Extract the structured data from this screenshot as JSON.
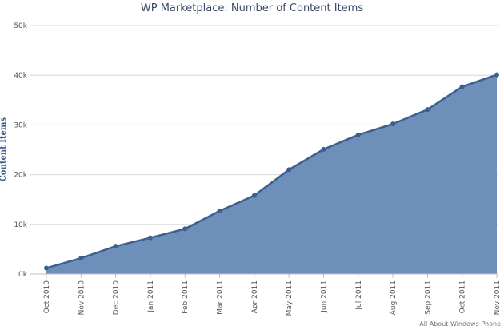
{
  "chart_data": {
    "type": "area",
    "title": "WP Marketplace: Number of Content Items",
    "ylabel": "Content Items",
    "xlabel": "",
    "credit": "All About Windows Phone",
    "categories": [
      "Oct 2010",
      "Nov 2010",
      "Dec 2010",
      "Jan 2011",
      "Feb 2011",
      "Mar 2011",
      "Apr 2011",
      "May 2011",
      "Jun 2011",
      "Jul 2011",
      "Aug 2011",
      "Sep 2011",
      "Oct 2011",
      "Nov 2011"
    ],
    "values": [
      1200,
      3200,
      5600,
      7300,
      9100,
      12700,
      15800,
      21000,
      25100,
      28000,
      30200,
      33100,
      37700,
      40100
    ],
    "ylim": [
      0,
      50000
    ],
    "yticks": [
      0,
      10000,
      20000,
      30000,
      40000,
      50000
    ],
    "ytick_labels": [
      "0k",
      "10k",
      "20k",
      "30k",
      "40k",
      "50k"
    ],
    "grid": true,
    "colors": {
      "fill": "#6d8fba",
      "line": "#3d5f8e",
      "marker": "#3d5f8e",
      "grid": "#d8d8d8"
    }
  }
}
